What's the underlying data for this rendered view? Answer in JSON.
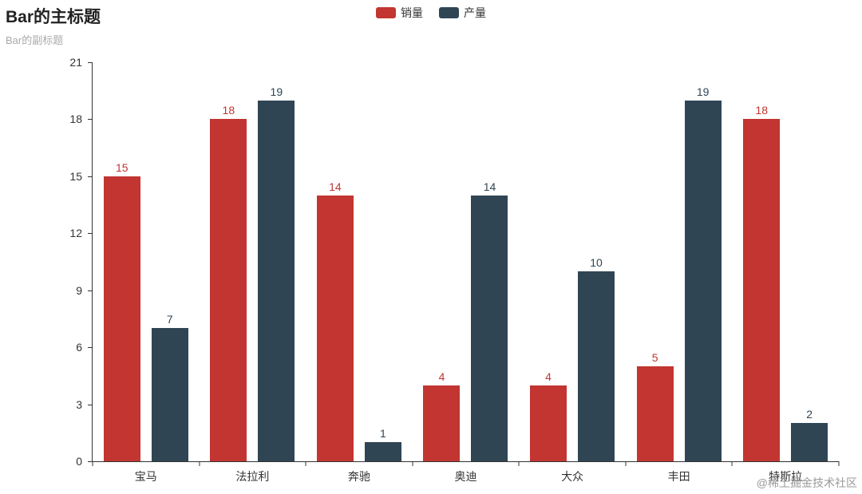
{
  "header": {
    "title": "Bar的主标题",
    "subtitle": "Bar的副标题"
  },
  "watermark": "@稀土掘金技术社区",
  "colors": {
    "series_sales": "#c23531",
    "series_production": "#2f4554",
    "axis": "#333333",
    "subtitle": "#aaaaaa",
    "watermark": "#999999"
  },
  "chart_data": {
    "type": "bar",
    "title": "Bar的主标题",
    "subtitle": "Bar的副标题",
    "categories": [
      "宝马",
      "法拉利",
      "奔驰",
      "奥迪",
      "大众",
      "丰田",
      "特斯拉"
    ],
    "series": [
      {
        "name": "销量",
        "color": "#c23531",
        "values": [
          15,
          18,
          14,
          4,
          4,
          5,
          18
        ]
      },
      {
        "name": "产量",
        "color": "#2f4554",
        "values": [
          7,
          19,
          1,
          14,
          10,
          19,
          2
        ]
      }
    ],
    "xlabel": "",
    "ylabel": "",
    "ylim": [
      0,
      21
    ],
    "yticks": [
      0,
      3,
      6,
      9,
      12,
      15,
      18,
      21
    ],
    "grid": false,
    "legend_position": "top-center",
    "value_labels": true
  }
}
